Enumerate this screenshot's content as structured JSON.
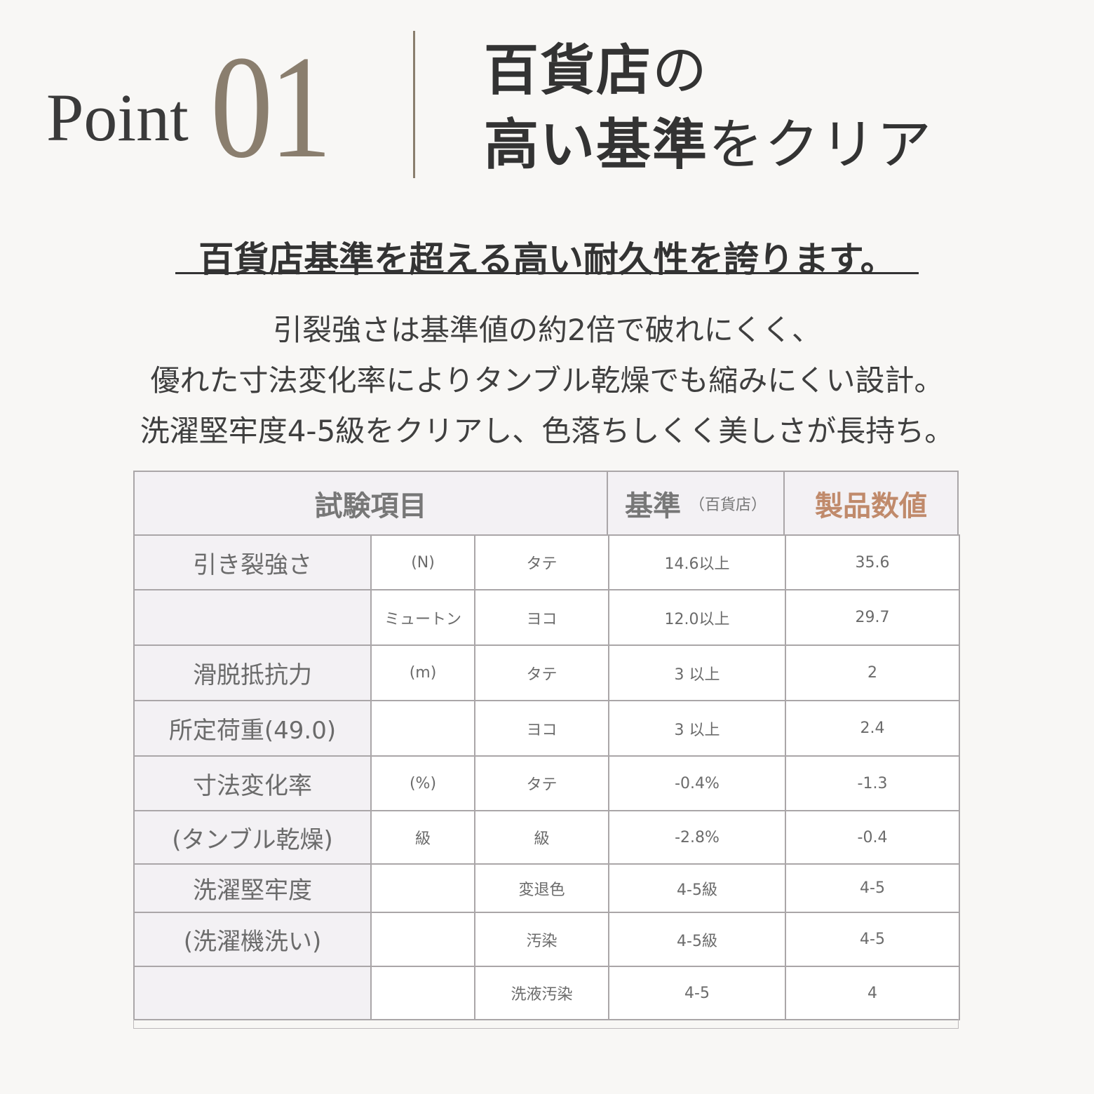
{
  "header": {
    "point_label": "Point",
    "point_number": "01",
    "title_line1_bold": "百貨店",
    "title_line1_rest": "の",
    "title_line2_bold": "高い基準",
    "title_line2_rest": "をクリア"
  },
  "subtitle": "百貨店基準を超える高い耐久性を誇ります。",
  "body_lines": [
    "引裂強さは基準値の約2倍で破れにくく、",
    "優れた寸法変化率によりタンブル乾燥でも縮みにくい設計。",
    "洗濯堅牢度4-5級をクリアし、色落ちしくく美しさが長持ち。"
  ],
  "colors": {
    "accent": "#c08a6b",
    "number": "#8a7e6e",
    "label_bg": "#f3f1f4",
    "border": "#aaa6a8"
  },
  "table": {
    "headers": {
      "item": "試験項目",
      "standard": "基準",
      "standard_note": "（百貨店）",
      "product": "製品数値"
    },
    "rows": [
      [
        "引き裂強さ",
        "(N)",
        "タテ",
        "14.6以上",
        "35.6"
      ],
      [
        "",
        "ミュートン",
        "ヨコ",
        "12.0以上",
        "29.7"
      ],
      [
        "滑脱抵抗力",
        "(m)",
        "タテ",
        "3 以上",
        "2"
      ],
      [
        "所定荷重(49.0)",
        "",
        "ヨコ",
        "3 以上",
        "2.4"
      ],
      [
        "寸法変化率",
        "(%)",
        "タテ",
        "-0.4%",
        "-1.3"
      ],
      [
        "(タンブル乾燥)",
        "級",
        "級",
        "-2.8%",
        "-0.4"
      ],
      [
        "洗濯堅牢度",
        "",
        "変退色",
        "4-5級",
        "4-5"
      ],
      [
        "(洗濯機洗い)",
        "",
        "汚染",
        "4-5級",
        "4-5"
      ],
      [
        "",
        "",
        "洗液汚染",
        "4-5",
        "4"
      ]
    ]
  }
}
